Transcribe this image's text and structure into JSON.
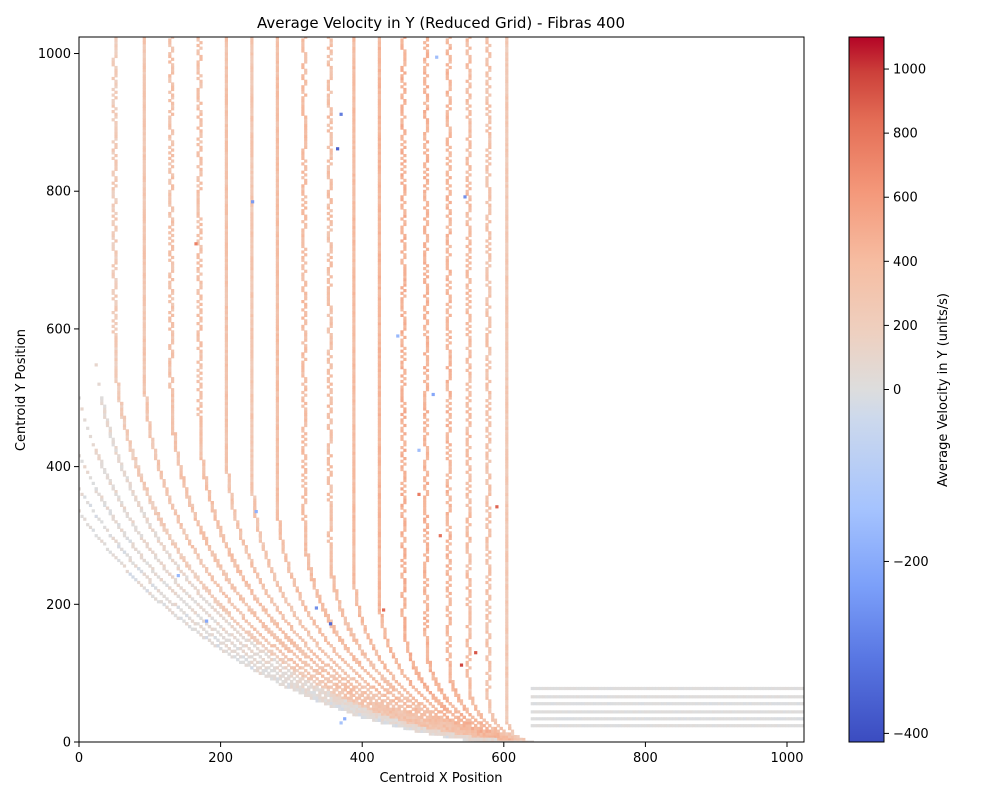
{
  "chart_data": {
    "type": "heatmap",
    "title": "Average Velocity in Y (Reduced Grid) - Fibras 400",
    "xlabel": "Centroid X Position",
    "ylabel": "Centroid Y Position",
    "xlim": [
      0,
      1024
    ],
    "ylim": [
      0,
      1024
    ],
    "x_ticks": [
      0,
      200,
      400,
      600,
      800,
      1000
    ],
    "y_ticks": [
      0,
      200,
      400,
      600,
      800,
      1000
    ],
    "grid": false,
    "colorbar": {
      "label": "Average Velocity in Y (units/s)",
      "colormap": "coolwarm",
      "vmin": -410,
      "vcenter": 0,
      "vmax": 1100,
      "ticks": [
        -400,
        -200,
        0,
        200,
        400,
        600,
        800,
        1000
      ],
      "colors": {
        "low": "#3b4cc0",
        "mid": "#dddddd",
        "high": "#b40426"
      }
    },
    "bands": [
      {
        "kind": "arc",
        "cx": 640,
        "r": 590,
        "top": 1024,
        "value": 260
      },
      {
        "kind": "arc",
        "cx": 640,
        "r": 548,
        "top": 1024,
        "value": 330
      },
      {
        "kind": "arc",
        "cx": 640,
        "r": 510,
        "top": 1024,
        "value": 360
      },
      {
        "kind": "arc",
        "cx": 640,
        "r": 470,
        "top": 1024,
        "value": 380
      },
      {
        "kind": "arc",
        "cx": 640,
        "r": 432,
        "top": 1024,
        "value": 360
      },
      {
        "kind": "arc",
        "cx": 640,
        "r": 396,
        "top": 1024,
        "value": 330
      },
      {
        "kind": "arc",
        "cx": 640,
        "r": 360,
        "top": 1024,
        "value": 400
      },
      {
        "kind": "arc",
        "cx": 640,
        "r": 322,
        "top": 1024,
        "value": 420
      },
      {
        "kind": "arc",
        "cx": 640,
        "r": 286,
        "top": 1024,
        "value": 380
      },
      {
        "kind": "arc",
        "cx": 640,
        "r": 252,
        "top": 1024,
        "value": 440
      },
      {
        "kind": "arc",
        "cx": 640,
        "r": 216,
        "top": 1024,
        "value": 480
      },
      {
        "kind": "arc",
        "cx": 640,
        "r": 182,
        "top": 1024,
        "value": 520
      },
      {
        "kind": "arc",
        "cx": 640,
        "r": 150,
        "top": 1024,
        "value": 500
      },
      {
        "kind": "arc",
        "cx": 640,
        "r": 118,
        "top": 1024,
        "value": 480
      },
      {
        "kind": "arc",
        "cx": 640,
        "r": 90,
        "top": 1024,
        "value": 420
      },
      {
        "kind": "arc",
        "cx": 640,
        "r": 62,
        "top": 1024,
        "value": 360
      },
      {
        "kind": "arc",
        "cx": 640,
        "r": 36,
        "top": 1024,
        "value": 300
      },
      {
        "kind": "arc",
        "cx": 640,
        "r": 660,
        "top": 420,
        "value": 80
      },
      {
        "kind": "arc",
        "cx": 640,
        "r": 700,
        "top": 370,
        "value": 60
      },
      {
        "kind": "arc",
        "cx": 640,
        "r": 740,
        "top": 300,
        "value": 40
      },
      {
        "kind": "arc",
        "cx": 640,
        "r": 780,
        "top": 220,
        "value": 30
      },
      {
        "kind": "arc",
        "cx": 640,
        "r": 620,
        "top": 500,
        "value": 90
      },
      {
        "kind": "line",
        "x1": 640,
        "x2": 1024,
        "y": 78,
        "value": 10
      },
      {
        "kind": "line",
        "x1": 640,
        "x2": 1024,
        "y": 66,
        "value": 10
      },
      {
        "kind": "line",
        "x1": 640,
        "x2": 1024,
        "y": 56,
        "value": 0
      },
      {
        "kind": "line",
        "x1": 640,
        "x2": 1024,
        "y": 44,
        "value": 10
      },
      {
        "kind": "line",
        "x1": 640,
        "x2": 1024,
        "y": 34,
        "value": 0
      },
      {
        "kind": "line",
        "x1": 640,
        "x2": 1024,
        "y": 24,
        "value": 10
      }
    ],
    "outlier_cells": [
      {
        "x": 335,
        "y": 195,
        "value": -300
      },
      {
        "x": 365,
        "y": 862,
        "value": -380
      },
      {
        "x": 370,
        "y": 912,
        "value": -330
      },
      {
        "x": 245,
        "y": 785,
        "value": -280
      },
      {
        "x": 500,
        "y": 505,
        "value": -260
      },
      {
        "x": 355,
        "y": 172,
        "value": -360
      },
      {
        "x": 505,
        "y": 995,
        "value": -200
      },
      {
        "x": 545,
        "y": 792,
        "value": -300
      },
      {
        "x": 180,
        "y": 176,
        "value": -260
      },
      {
        "x": 250,
        "y": 335,
        "value": -240
      },
      {
        "x": 450,
        "y": 590,
        "value": -220
      },
      {
        "x": 480,
        "y": 424,
        "value": -200
      },
      {
        "x": 375,
        "y": 34,
        "value": -250
      },
      {
        "x": 370,
        "y": 28,
        "value": -180
      },
      {
        "x": 140,
        "y": 242,
        "value": -220
      },
      {
        "x": 590,
        "y": 342,
        "value": 900
      },
      {
        "x": 540,
        "y": 112,
        "value": 1000
      },
      {
        "x": 560,
        "y": 130,
        "value": 950
      },
      {
        "x": 165,
        "y": 724,
        "value": 800
      },
      {
        "x": 510,
        "y": 300,
        "value": 850
      },
      {
        "x": 430,
        "y": 192,
        "value": 880
      },
      {
        "x": 480,
        "y": 360,
        "value": 820
      }
    ]
  }
}
